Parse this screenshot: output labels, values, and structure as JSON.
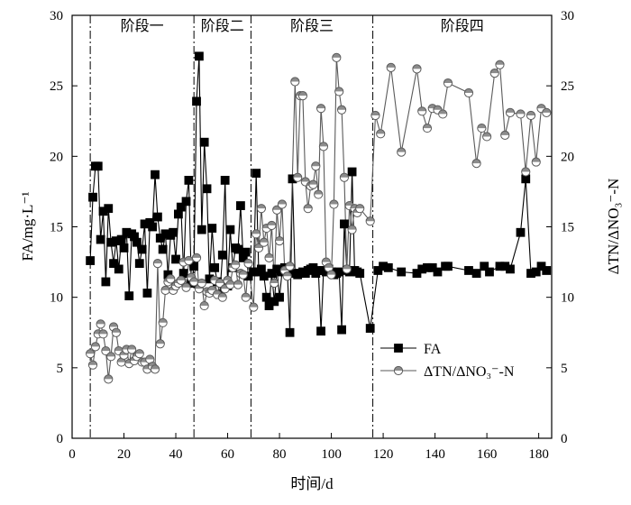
{
  "chart_data": {
    "type": "line",
    "xlabel": "时间/d",
    "ylabel": "FA/mg·L⁻¹",
    "y2label": "ΔTN/ΔNO₃⁻-N",
    "xlim": [
      0,
      185
    ],
    "ylim": [
      0,
      30
    ],
    "y2lim": [
      0,
      30
    ],
    "x_ticks": [
      0,
      20,
      40,
      60,
      80,
      100,
      120,
      140,
      160,
      180
    ],
    "y_ticks": [
      0,
      5,
      10,
      15,
      20,
      25,
      30
    ],
    "y2_ticks": [
      0,
      5,
      10,
      15,
      20,
      25,
      30
    ],
    "grid": false,
    "legend_position": "lower-right",
    "stage_boundaries": [
      7,
      47,
      69,
      116
    ],
    "stages": [
      {
        "label": "阶段一",
        "start": 7,
        "end": 47
      },
      {
        "label": "阶段二",
        "start": 47,
        "end": 69
      },
      {
        "label": "阶段三",
        "start": 69,
        "end": 116
      },
      {
        "label": "阶段四",
        "start": 116,
        "end": 185
      }
    ],
    "series": [
      {
        "name": "FA",
        "axis": "left",
        "marker": "square",
        "color": "#000000",
        "marker_fill": "#000000",
        "points": [
          [
            7,
            12.6
          ],
          [
            8,
            17.1
          ],
          [
            9,
            19.3
          ],
          [
            10,
            19.3
          ],
          [
            11,
            14.1
          ],
          [
            12,
            16.1
          ],
          [
            13,
            11.1
          ],
          [
            14,
            16.3
          ],
          [
            15,
            13.9
          ],
          [
            16,
            12.4
          ],
          [
            17,
            14.0
          ],
          [
            18,
            12.0
          ],
          [
            19,
            14.1
          ],
          [
            20,
            13.5
          ],
          [
            21,
            14.6
          ],
          [
            22,
            10.1
          ],
          [
            23,
            14.5
          ],
          [
            24,
            14.3
          ],
          [
            25,
            13.9
          ],
          [
            26,
            12.4
          ],
          [
            27,
            13.4
          ],
          [
            28,
            15.2
          ],
          [
            29,
            10.3
          ],
          [
            30,
            15.3
          ],
          [
            31,
            15.0
          ],
          [
            32,
            18.7
          ],
          [
            33,
            15.7
          ],
          [
            34,
            14.2
          ],
          [
            35,
            13.4
          ],
          [
            36,
            14.5
          ],
          [
            37,
            11.6
          ],
          [
            38,
            14.4
          ],
          [
            39,
            14.6
          ],
          [
            40,
            12.7
          ],
          [
            41,
            15.9
          ],
          [
            42,
            16.4
          ],
          [
            43,
            11.7
          ],
          [
            44,
            16.8
          ],
          [
            45,
            18.3
          ],
          [
            46,
            11.0
          ],
          [
            47,
            12.2
          ],
          [
            48,
            23.9
          ],
          [
            49,
            27.1
          ],
          [
            50,
            14.8
          ],
          [
            51,
            21.0
          ],
          [
            52,
            17.7
          ],
          [
            53,
            11.3
          ],
          [
            54,
            14.9
          ],
          [
            55,
            12.1
          ],
          [
            56,
            11.1
          ],
          [
            57,
            10.2
          ],
          [
            58,
            13.0
          ],
          [
            59,
            18.3
          ],
          [
            60,
            10.8
          ],
          [
            61,
            14.8
          ],
          [
            62,
            12.1
          ],
          [
            63,
            13.5
          ],
          [
            64,
            13.4
          ],
          [
            65,
            16.5
          ],
          [
            66,
            12.8
          ],
          [
            67,
            13.2
          ],
          [
            68,
            11.5
          ],
          [
            70,
            11.8
          ],
          [
            71,
            18.8
          ],
          [
            72,
            11.8
          ],
          [
            73,
            12.0
          ],
          [
            74,
            11.5
          ],
          [
            75,
            10.0
          ],
          [
            76,
            9.4
          ],
          [
            77,
            11.7
          ],
          [
            78,
            9.7
          ],
          [
            79,
            12.0
          ],
          [
            80,
            10.0
          ],
          [
            81,
            11.8
          ],
          [
            82,
            12.1
          ],
          [
            83,
            11.9
          ],
          [
            84,
            7.5
          ],
          [
            85,
            18.4
          ],
          [
            86,
            11.7
          ],
          [
            87,
            11.6
          ],
          [
            88,
            11.7
          ],
          [
            89,
            11.8
          ],
          [
            90,
            11.7
          ],
          [
            91,
            11.9
          ],
          [
            92,
            12.0
          ],
          [
            93,
            12.1
          ],
          [
            94,
            11.7
          ],
          [
            95,
            11.9
          ],
          [
            96,
            7.6
          ],
          [
            97,
            11.9
          ],
          [
            98,
            11.8
          ],
          [
            99,
            12.0
          ],
          [
            100,
            11.8
          ],
          [
            101,
            11.6
          ],
          [
            102,
            11.7
          ],
          [
            103,
            11.8
          ],
          [
            104,
            7.7
          ],
          [
            105,
            15.2
          ],
          [
            106,
            11.9
          ],
          [
            107,
            11.8
          ],
          [
            108,
            18.9
          ],
          [
            109,
            11.9
          ],
          [
            110,
            11.8
          ],
          [
            111,
            11.7
          ],
          [
            115,
            7.8
          ],
          [
            118,
            11.9
          ],
          [
            120,
            12.2
          ],
          [
            122,
            12.1
          ],
          [
            127,
            11.8
          ],
          [
            133,
            11.7
          ],
          [
            135,
            12.0
          ],
          [
            137,
            12.1
          ],
          [
            139,
            12.1
          ],
          [
            141,
            11.8
          ],
          [
            144,
            12.2
          ],
          [
            145,
            12.2
          ],
          [
            153,
            11.9
          ],
          [
            156,
            11.7
          ],
          [
            159,
            12.2
          ],
          [
            161,
            11.8
          ],
          [
            165,
            12.2
          ],
          [
            167,
            12.2
          ],
          [
            169,
            12.0
          ],
          [
            173,
            14.6
          ],
          [
            175,
            18.4
          ],
          [
            177,
            11.7
          ],
          [
            179,
            11.8
          ],
          [
            181,
            12.2
          ],
          [
            183,
            11.9
          ]
        ]
      },
      {
        "name": "ΔTN/ΔNO₃⁻-N",
        "axis": "right",
        "marker": "half-filled-circle",
        "color": "#5a5a5a",
        "marker_fill": "#8c8c8c",
        "points": [
          [
            7,
            6.0
          ],
          [
            8,
            5.2
          ],
          [
            9,
            6.5
          ],
          [
            10,
            7.4
          ],
          [
            11,
            8.1
          ],
          [
            12,
            7.4
          ],
          [
            13,
            6.2
          ],
          [
            14,
            4.2
          ],
          [
            15,
            5.8
          ],
          [
            16,
            7.9
          ],
          [
            17,
            7.5
          ],
          [
            18,
            6.2
          ],
          [
            19,
            5.4
          ],
          [
            20,
            5.9
          ],
          [
            21,
            6.3
          ],
          [
            22,
            5.3
          ],
          [
            23,
            6.3
          ],
          [
            24,
            5.5
          ],
          [
            25,
            5.8
          ],
          [
            26,
            6.0
          ],
          [
            27,
            5.4
          ],
          [
            28,
            5.4
          ],
          [
            29,
            4.9
          ],
          [
            30,
            5.6
          ],
          [
            31,
            5.1
          ],
          [
            32,
            4.9
          ],
          [
            33,
            12.4
          ],
          [
            34,
            6.7
          ],
          [
            35,
            8.2
          ],
          [
            36,
            10.5
          ],
          [
            37,
            11.1
          ],
          [
            38,
            11.3
          ],
          [
            39,
            10.5
          ],
          [
            40,
            10.8
          ],
          [
            41,
            11.0
          ],
          [
            42,
            11.2
          ],
          [
            43,
            12.5
          ],
          [
            44,
            10.7
          ],
          [
            45,
            12.6
          ],
          [
            46,
            11.4
          ],
          [
            47,
            11.1
          ],
          [
            48,
            12.8
          ],
          [
            49,
            10.6
          ],
          [
            50,
            11.0
          ],
          [
            51,
            9.4
          ],
          [
            52,
            10.4
          ],
          [
            53,
            10.3
          ],
          [
            54,
            10.5
          ],
          [
            55,
            11.2
          ],
          [
            56,
            10.2
          ],
          [
            57,
            11.0
          ],
          [
            58,
            10.0
          ],
          [
            59,
            10.6
          ],
          [
            60,
            11.2
          ],
          [
            61,
            10.9
          ],
          [
            62,
            12.1
          ],
          [
            63,
            12.3
          ],
          [
            64,
            10.9
          ],
          [
            65,
            11.7
          ],
          [
            66,
            11.6
          ],
          [
            67,
            10.0
          ],
          [
            68,
            12.4
          ],
          [
            70,
            9.3
          ],
          [
            71,
            14.5
          ],
          [
            72,
            13.5
          ],
          [
            73,
            16.3
          ],
          [
            74,
            13.9
          ],
          [
            75,
            14.9
          ],
          [
            76,
            12.8
          ],
          [
            77,
            15.1
          ],
          [
            78,
            11.0
          ],
          [
            79,
            16.2
          ],
          [
            80,
            14.0
          ],
          [
            81,
            16.6
          ],
          [
            82,
            11.9
          ],
          [
            83,
            11.5
          ],
          [
            84,
            12.2
          ],
          [
            86,
            25.3
          ],
          [
            87,
            18.5
          ],
          [
            88,
            24.3
          ],
          [
            89,
            24.3
          ],
          [
            90,
            18.2
          ],
          [
            91,
            16.3
          ],
          [
            92,
            17.9
          ],
          [
            93,
            18.0
          ],
          [
            94,
            19.3
          ],
          [
            95,
            17.3
          ],
          [
            96,
            23.4
          ],
          [
            97,
            20.7
          ],
          [
            98,
            12.5
          ],
          [
            99,
            12.1
          ],
          [
            100,
            11.6
          ],
          [
            101,
            16.6
          ],
          [
            102,
            27.0
          ],
          [
            103,
            24.6
          ],
          [
            104,
            23.3
          ],
          [
            105,
            18.5
          ],
          [
            106,
            12.0
          ],
          [
            107,
            16.5
          ],
          [
            108,
            14.8
          ],
          [
            109,
            16.3
          ],
          [
            110,
            16.0
          ],
          [
            111,
            16.3
          ],
          [
            115,
            15.4
          ],
          [
            117,
            22.9
          ],
          [
            119,
            21.6
          ],
          [
            123,
            26.3
          ],
          [
            127,
            20.3
          ],
          [
            133,
            26.2
          ],
          [
            135,
            23.2
          ],
          [
            137,
            22.0
          ],
          [
            139,
            23.4
          ],
          [
            141,
            23.3
          ],
          [
            143,
            23.0
          ],
          [
            145,
            25.2
          ],
          [
            153,
            24.5
          ],
          [
            156,
            19.5
          ],
          [
            158,
            22.0
          ],
          [
            160,
            21.4
          ],
          [
            163,
            25.9
          ],
          [
            165,
            26.5
          ],
          [
            167,
            21.5
          ],
          [
            169,
            23.1
          ],
          [
            173,
            23.0
          ],
          [
            175,
            18.9
          ],
          [
            177,
            22.9
          ],
          [
            179,
            19.6
          ],
          [
            181,
            23.4
          ],
          [
            183,
            23.1
          ]
        ]
      }
    ]
  }
}
